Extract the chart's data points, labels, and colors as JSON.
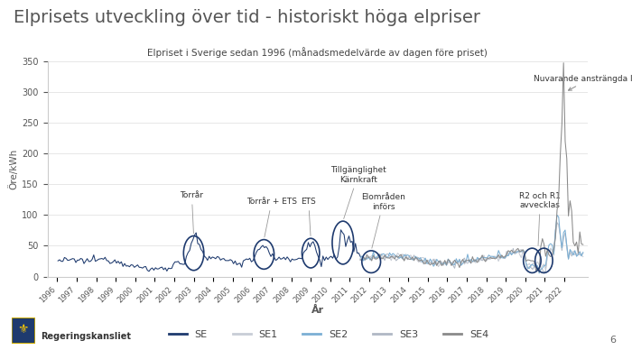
{
  "title_main": "Elprisets utveckling över tid - historiskt höga elpriser",
  "title_sub": "Elpriset i Sverige sedan 1996 (månadsmedelvärde av dagen före priset)",
  "xlabel": "År",
  "ylabel": "Öre/kWh",
  "ylim": [
    0,
    350
  ],
  "yticks": [
    0,
    50,
    100,
    150,
    200,
    250,
    300,
    350
  ],
  "bg_color": "#ffffff",
  "plot_bg_color": "#ffffff",
  "line_colors": {
    "SE": "#1e3a6e",
    "SE1": "#c8cdd6",
    "SE2": "#7bafd4",
    "SE3": "#b0b8c4",
    "SE4": "#8a8a8a"
  },
  "title_color": "#666666",
  "ann_color": "#333333",
  "circle_color": "#1e3a6e",
  "footer_text": "Regeringskansliet",
  "page_num": "6"
}
